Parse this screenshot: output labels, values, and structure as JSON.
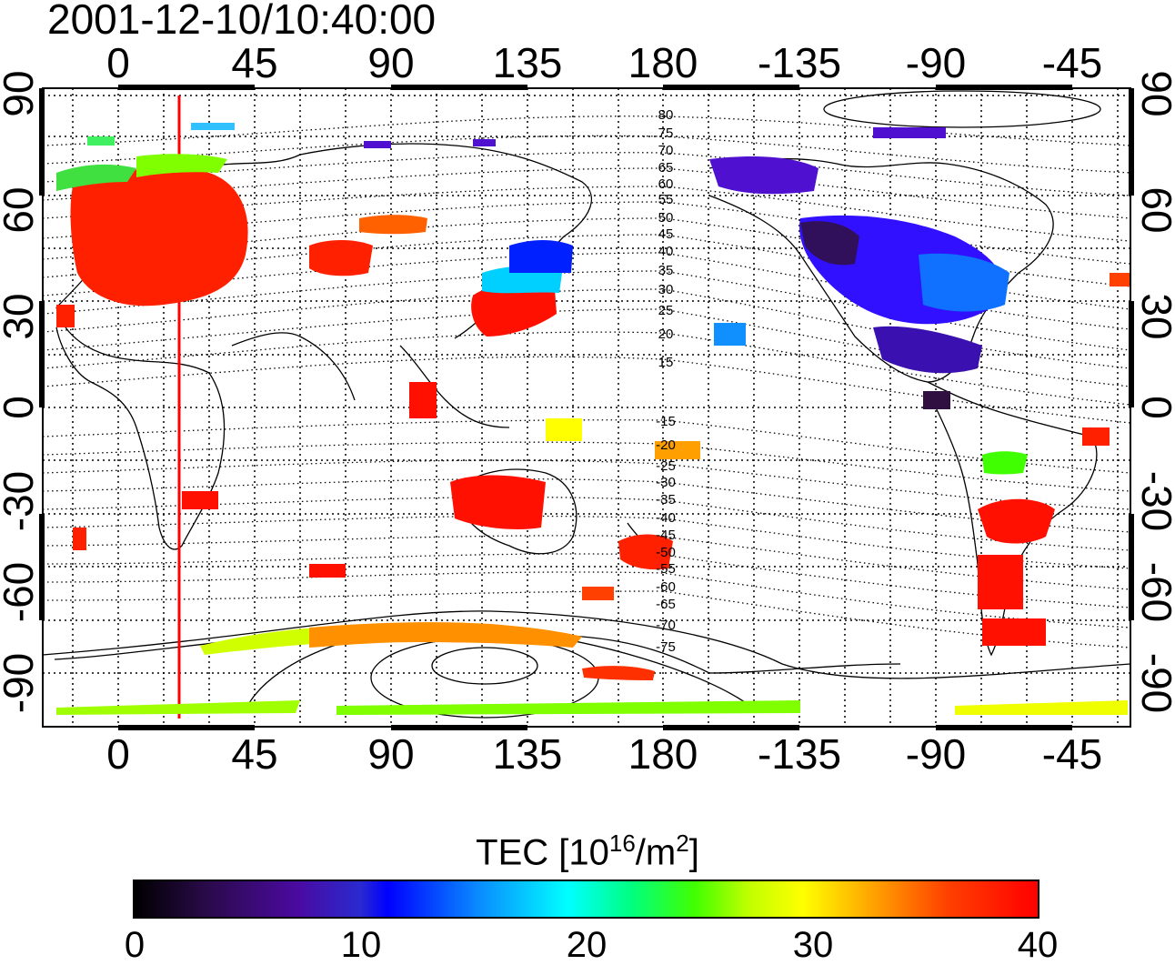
{
  "timestamp": "2001-12-10/10:40:00",
  "map": {
    "lon_ticks_top": [
      "0",
      "45",
      "90",
      "135",
      "180",
      "-135",
      "-90",
      "-45"
    ],
    "lon_ticks_bottom": [
      "0",
      "45",
      "90",
      "135",
      "180",
      "-135",
      "-90",
      "-45"
    ],
    "lat_ticks_left": [
      "90",
      "60",
      "30",
      "0",
      "-30",
      "-60",
      "-90"
    ],
    "lat_ticks_right": [
      "90",
      "60",
      "30",
      "0",
      "-30",
      "-60",
      "-90"
    ],
    "magnetic_lat_labels_north": [
      "80",
      "75",
      "70",
      "65",
      "60",
      "55",
      "50",
      "45",
      "40",
      "35",
      "30",
      "25",
      "20",
      "15"
    ],
    "magnetic_lat_labels_south": [
      "-15",
      "-20",
      "-25",
      "-30",
      "-35",
      "-40",
      "-45",
      "-50",
      "-55",
      "-60",
      "-65",
      "-70",
      "-75"
    ],
    "grid": "dotted",
    "red_meridian_lon": 20
  },
  "colorbar": {
    "title_prefix": "TEC  [10",
    "title_exp": "16",
    "title_mid": "/m",
    "title_exp2": "2",
    "title_suffix": "]",
    "ticks": [
      "0",
      "10",
      "20",
      "30",
      "40"
    ],
    "min": 0,
    "max": 40,
    "colors": {
      "low": "#000000",
      "mid_low": "#0000ff",
      "mid": "#00ffff",
      "mid_high": "#ffff00",
      "high": "#ff0000"
    }
  }
}
